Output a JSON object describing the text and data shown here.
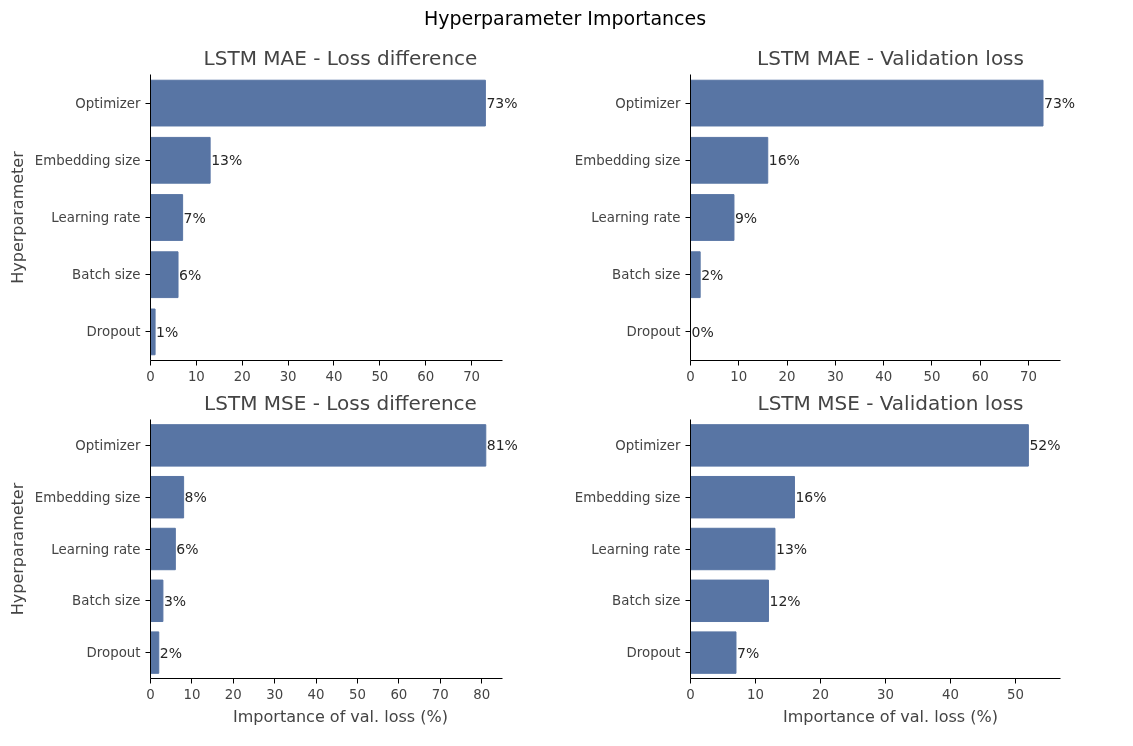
{
  "chart_data": [
    {
      "type": "bar",
      "orientation": "horizontal",
      "title": "LSTM MAE - Loss difference",
      "ylabel": "Hyperparameter",
      "annotations": [
        "Hyperparameter Importances"
      ],
      "categories": [
        "Optimizer",
        "Embedding size",
        "Learning rate",
        "Batch size",
        "Dropout"
      ],
      "values": [
        73,
        13,
        7,
        6,
        1
      ],
      "value_labels": [
        "73%",
        "13%",
        "7%",
        "6%",
        "1%"
      ],
      "color": "#5875a4",
      "xlim": [
        0,
        76.7
      ],
      "xticks": [
        0,
        10,
        20,
        30,
        40,
        50,
        60,
        70
      ],
      "grid": false
    },
    {
      "type": "bar",
      "orientation": "horizontal",
      "title": "LSTM MAE - Validation loss",
      "categories": [
        "Optimizer",
        "Embedding size",
        "Learning rate",
        "Batch size",
        "Dropout"
      ],
      "values": [
        73,
        16,
        9,
        2,
        0
      ],
      "value_labels": [
        "73%",
        "16%",
        "9%",
        "2%",
        "0%"
      ],
      "color": "#5875a4",
      "xlim": [
        0,
        76.7
      ],
      "xticks": [
        0,
        10,
        20,
        30,
        40,
        50,
        60,
        70
      ],
      "grid": false
    },
    {
      "type": "bar",
      "orientation": "horizontal",
      "title": "LSTM MSE - Loss difference",
      "ylabel": "Hyperparameter",
      "xlabel": "Importance of val. loss (%)",
      "categories": [
        "Optimizer",
        "Embedding size",
        "Learning rate",
        "Batch size",
        "Dropout"
      ],
      "values": [
        81,
        8,
        6,
        3,
        2
      ],
      "value_labels": [
        "81%",
        "8%",
        "6%",
        "3%",
        "2%"
      ],
      "color": "#5875a4",
      "xlim": [
        0,
        85
      ],
      "xticks": [
        0,
        10,
        20,
        30,
        40,
        50,
        60,
        70,
        80
      ],
      "grid": false
    },
    {
      "type": "bar",
      "orientation": "horizontal",
      "title": "LSTM MSE - Validation loss",
      "xlabel": "Importance of val. loss (%)",
      "categories": [
        "Optimizer",
        "Embedding size",
        "Learning rate",
        "Batch size",
        "Dropout"
      ],
      "values": [
        52,
        16,
        13,
        12,
        7
      ],
      "value_labels": [
        "52%",
        "16%",
        "13%",
        "12%",
        "7%"
      ],
      "color": "#5875a4",
      "xlim": [
        0,
        57
      ],
      "xticks": [
        0,
        10,
        20,
        30,
        40,
        50
      ],
      "grid": false
    }
  ]
}
